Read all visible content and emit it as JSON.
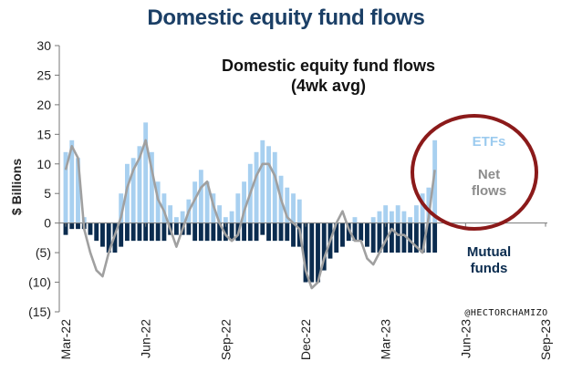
{
  "header": {
    "title": "Domestic equity fund flows"
  },
  "chart_data": {
    "type": "bar",
    "title": "Domestic equity fund flows",
    "subtitle": "(4wk avg)",
    "ylabel": "$ Billions",
    "xlabel": "",
    "ylim": [
      -15,
      30
    ],
    "yticks": [
      30,
      25,
      20,
      15,
      10,
      5,
      0,
      -5,
      -10,
      -15
    ],
    "ytick_labels": [
      "30",
      "25",
      "20",
      "15",
      "10",
      "5",
      "0",
      "(5)",
      "(10)",
      "(15)"
    ],
    "xtick_labels": [
      "Mar-22",
      "Jun-22",
      "Sep-22",
      "Dec-22",
      "Mar-23",
      "Jun-23",
      "Sep-23"
    ],
    "grid": false,
    "legend": "inline annotations",
    "series": [
      {
        "name": "ETFs",
        "color": "#a8d0f0",
        "values": [
          12,
          14,
          11,
          1,
          0,
          0,
          0,
          0,
          0,
          5,
          10,
          11,
          13,
          17,
          12,
          7,
          5,
          3,
          1,
          2,
          4,
          7,
          9,
          7,
          5,
          3,
          1,
          2,
          5,
          7,
          10,
          12,
          14,
          13,
          12,
          8,
          6,
          5,
          4,
          0,
          0,
          0,
          0,
          0,
          0,
          0,
          0,
          1,
          0,
          0,
          1,
          2,
          3,
          2,
          3,
          2,
          1,
          3,
          5,
          6,
          14
        ]
      },
      {
        "name": "Mutual funds",
        "color": "#0b2c4f",
        "values": [
          -2,
          -1,
          -1,
          -1,
          -2,
          -3,
          -4,
          -5,
          -5,
          -4,
          -3,
          -3,
          -3,
          -3,
          -3,
          -3,
          -3,
          -2,
          -2,
          -2,
          -2,
          -3,
          -3,
          -3,
          -3,
          -3,
          -3,
          -3,
          -3,
          -3,
          -3,
          -3,
          -2,
          -3,
          -3,
          -3,
          -3,
          -4,
          -4,
          -10,
          -10,
          -10,
          -8,
          -6,
          -5,
          -4,
          -3,
          -3,
          -3,
          -4,
          -5,
          -5,
          -5,
          -5,
          -5,
          -5,
          -5,
          -5,
          -5,
          -5,
          -5
        ]
      },
      {
        "name": "Net flows",
        "color": "#a0a0a0",
        "values": [
          9,
          13,
          11,
          -1,
          -5,
          -8,
          -9,
          -5,
          -2,
          1,
          6,
          9,
          11,
          14,
          9,
          4,
          2,
          -1,
          -4,
          -1,
          2,
          4,
          6,
          7,
          3,
          0,
          -2,
          -3,
          -2,
          2,
          5,
          8,
          10,
          10,
          8,
          4,
          1,
          0,
          -1,
          -8,
          -11,
          -10,
          -6,
          -3,
          0,
          2,
          -1,
          -3,
          -3,
          -6,
          -7,
          -5,
          -3,
          -1,
          -2,
          -2,
          -3,
          -4,
          -5,
          1,
          9
        ]
      }
    ],
    "annotations": [
      {
        "text": "ETFs",
        "color": "#9ccbef"
      },
      {
        "text": "Net",
        "color": "#8c8c8c"
      },
      {
        "text": "flows",
        "color": "#8c8c8c"
      },
      {
        "text": "Mutual",
        "color": "#0b2c4f"
      },
      {
        "text": "funds",
        "color": "#0b2c4f"
      }
    ],
    "highlight_circle_color": "#8b1a1a",
    "watermark": "@HECTORCHAMIZO"
  }
}
